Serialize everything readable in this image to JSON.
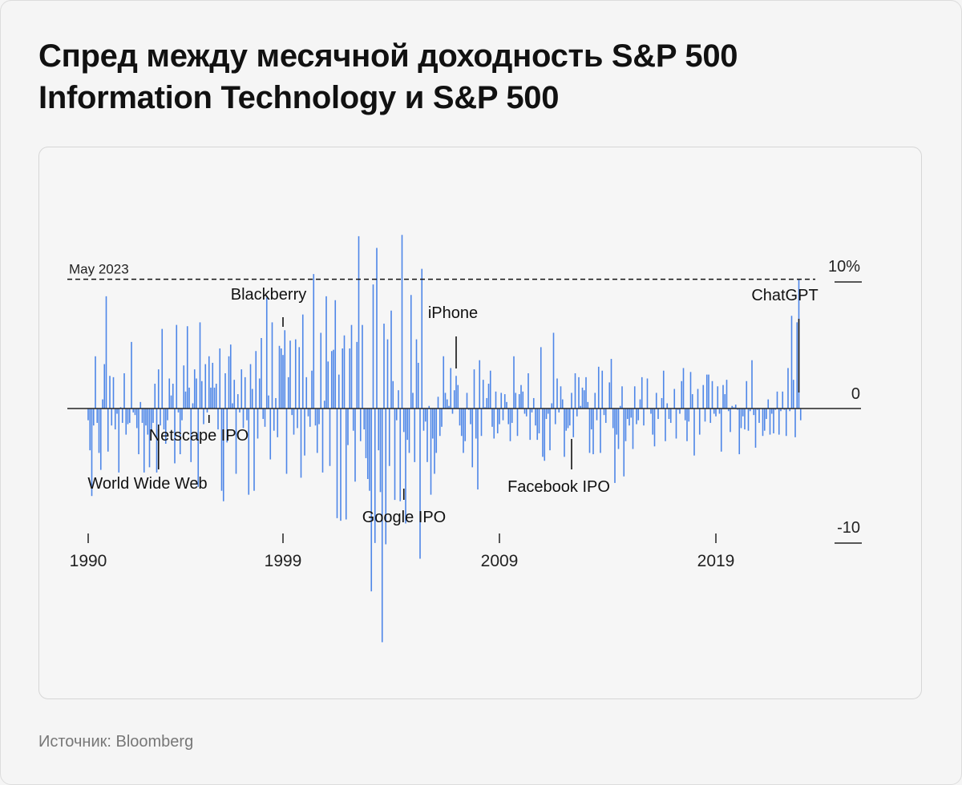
{
  "title": "Спред между месячной доходность S&P 500 Information Technology и S&P 500",
  "source": "Источник: Bloomberg",
  "colors": {
    "bar": "#4d86e8",
    "axis": "#222222",
    "reference": "#111111"
  },
  "chart_data": {
    "type": "bar",
    "title": "Спред между месячной доходность S&P 500 Information Technology и S&P 500",
    "xlabel": "",
    "ylabel": "",
    "ylim": [
      -18.6,
      15.3
    ],
    "y_ticks": [
      {
        "value": 10,
        "label": "10%"
      },
      {
        "value": 0,
        "label": "0"
      },
      {
        "value": -10,
        "label": "-10"
      }
    ],
    "x_ticks": [
      {
        "date": "1990-01",
        "label": "1990"
      },
      {
        "date": "1999-01",
        "label": "1999"
      },
      {
        "date": "2009-01",
        "label": "2009"
      },
      {
        "date": "2019-01",
        "label": "2019"
      }
    ],
    "x_range": [
      "1990-01",
      "2023-05"
    ],
    "reference_line": {
      "value": 9.9,
      "label": "May 2023"
    },
    "annotations": [
      {
        "label": "World Wide Web",
        "date": "1993-04",
        "position": "below"
      },
      {
        "label": "Netscape IPO",
        "date": "1995-08",
        "position": "below"
      },
      {
        "label": "Blackberry",
        "date": "1999-01",
        "position": "above"
      },
      {
        "label": "Google IPO",
        "date": "2004-08",
        "position": "below"
      },
      {
        "label": "iPhone",
        "date": "2007-01",
        "position": "above"
      },
      {
        "label": "Facebook IPO",
        "date": "2012-05",
        "position": "below"
      },
      {
        "label": "ChatGPT",
        "date": "2022-11",
        "position": "above"
      }
    ],
    "series": [
      {
        "start": "1990-01",
        "values": [
          -0.9,
          -3.2,
          -6.7,
          -1.3,
          4.0,
          -1.1,
          -3.4,
          -4.7,
          0.7,
          3.4,
          8.6,
          -3.3,
          2.5,
          -1.3,
          2.4,
          -1.6,
          -0.4,
          -4.9,
          0.1,
          -1.1,
          2.7,
          -2.0,
          -1.2,
          -1.1,
          5.1,
          -0.3,
          -0.5,
          -1.5,
          -3.5,
          0.5,
          -1.1,
          -4.9,
          -1.3,
          -2.0,
          -4.5,
          -1.6,
          -1.1,
          1.9,
          -4.9,
          3.0,
          -1.3,
          6.1,
          -1.6,
          -2.7,
          -0.9,
          2.3,
          1.0,
          1.9,
          -4.2,
          6.4,
          -0.3,
          -3.5,
          -0.9,
          3.3,
          1.3,
          6.3,
          1.6,
          -4.1,
          0.4,
          3.0,
          2.3,
          -6.0,
          6.6,
          2.1,
          -1.2,
          3.4,
          -0.3,
          4.0,
          1.6,
          3.5,
          1.6,
          1.9,
          -1.6,
          4.6,
          -6.3,
          -7.1,
          2.7,
          -2.6,
          4.0,
          4.9,
          0.4,
          2.2,
          -5.0,
          1.1,
          -0.3,
          3.0,
          -1.5,
          2.4,
          -0.9,
          -6.6,
          3.4,
          1.5,
          -6.3,
          4.4,
          -2.3,
          2.3,
          5.4,
          -0.8,
          -1.4,
          8.5,
          1.0,
          -3.9,
          6.6,
          -1.7,
          0.8,
          -2.2,
          4.8,
          4.6,
          4.1,
          6.0,
          -5.0,
          2.4,
          5.2,
          -0.5,
          -2.0,
          5.3,
          -1.5,
          4.7,
          -5.3,
          7.2,
          -3.6,
          2.4,
          -0.6,
          -1.4,
          2.9,
          10.3,
          -1.3,
          -3.4,
          -1.2,
          5.8,
          -4.9,
          0.6,
          8.6,
          3.6,
          -4.4,
          4.4,
          4.5,
          8.3,
          -8.4,
          2.6,
          -8.6,
          4.6,
          5.6,
          -8.5,
          -2.8,
          4.6,
          6.4,
          -1.7,
          -5.6,
          5.1,
          13.2,
          -2.5,
          6.4,
          -1.6,
          -3.8,
          -5.4,
          -6.3,
          -14.0,
          9.5,
          -10.3,
          12.3,
          -3.2,
          -6.4,
          -17.9,
          6.5,
          -10.4,
          5.3,
          -4.4,
          7.5,
          2.1,
          -7.0,
          -0.9,
          1.4,
          -7.1,
          13.3,
          -1.8,
          -8.8,
          -2.4,
          -3.4,
          8.7,
          1.2,
          -4.1,
          5.3,
          3.5,
          -11.5,
          10.7,
          -1.7,
          -1.0,
          -4.1,
          0.2,
          -6.6,
          -2.3,
          -5.0,
          -3.4,
          0.9,
          -2.1,
          -1.4,
          4.0,
          1.2,
          0.7,
          0.2,
          3.1,
          -0.4,
          1.4,
          2.5,
          1.8,
          -1.3,
          -2.1,
          -3.4,
          -2.5,
          1.2,
          -0.1,
          -1.2,
          -4.5,
          3.0,
          -2.3,
          -6.2,
          3.7,
          -2.1,
          2.2,
          0.1,
          0.8,
          1.9,
          2.9,
          -1.4,
          -2.3,
          1.3,
          -1.9,
          -1.2,
          1.2,
          -0.9,
          1.1,
          0.5,
          -1.2,
          -2.5,
          -1.1,
          4.0,
          1.2,
          -2.1,
          1.1,
          1.8,
          1.3,
          -0.4,
          -0.6,
          2.7,
          -2.4,
          -0.3,
          0.8,
          -1.3,
          -2.4,
          -1.9,
          4.7,
          -3.7,
          -4.0,
          -0.8,
          -0.4,
          -3.2,
          0.4,
          5.8,
          -1.2,
          2.3,
          -0.3,
          1.7,
          0.7,
          -3.7,
          -1.7,
          -1.5,
          -1.3,
          1.2,
          -2.2,
          2.7,
          -0.6,
          2.4,
          0.2,
          1.6,
          1.4,
          2.4,
          0.5,
          -3.4,
          -1.6,
          -3.5,
          1.2,
          -0.9,
          3.2,
          -3.4,
          2.9,
          -0.5,
          -1.1,
          0.0,
          2.0,
          3.8,
          -1.5,
          -5.7,
          -2.0,
          -3.1,
          0.2,
          1.7,
          -5.2,
          -2.5,
          -0.8,
          -1.3,
          -0.7,
          -3.1,
          1.7,
          -1.2,
          -0.9,
          0.7,
          2.4,
          -1.3,
          0.0,
          2.3,
          0.0,
          -0.4,
          -2.0,
          -2.9,
          1.2,
          -0.8,
          0.0,
          0.8,
          2.9,
          -2.5,
          0.4,
          -0.8,
          -1.1,
          0.0,
          1.5,
          -2.3,
          -0.1,
          -0.4,
          2.1,
          3.1,
          -0.9,
          -2.5,
          -1.0,
          2.8,
          1.1,
          -3.6,
          0.0,
          1.5,
          -2.0,
          0.0,
          1.8,
          -1.0,
          2.6,
          2.6,
          -1.1,
          2.1,
          -0.4,
          -0.6,
          1.7,
          -0.4,
          -3.3,
          1.8,
          1.1,
          2.2,
          -0.2,
          -1.8,
          0.2,
          0.1,
          0.3,
          -0.1,
          -3.5,
          -1.5,
          -0.6,
          -1.6,
          2.1,
          -1.7,
          -0.2,
          3.7,
          -0.5,
          -3.0,
          -0.1,
          -1.1,
          0.0,
          -2.1,
          -1.7,
          -0.8,
          0.7,
          -2.0,
          -0.4,
          -1.9,
          -0.1,
          1.3,
          -2.0,
          -0.2,
          1.3,
          -0.1,
          -2.1,
          3.1,
          -0.2,
          7.1,
          2.2,
          -2.2,
          6.6,
          9.9,
          -0.9
        ]
      }
    ]
  }
}
